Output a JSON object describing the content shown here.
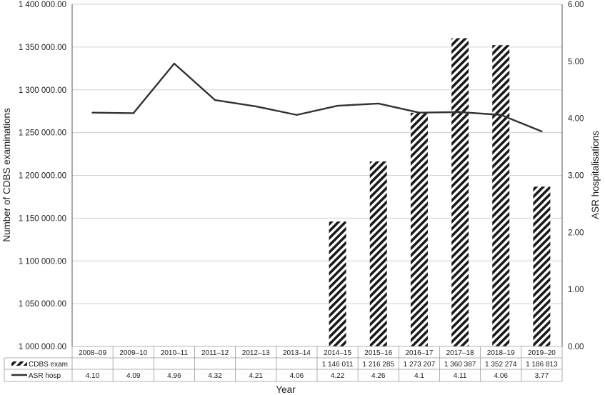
{
  "chart_data": {
    "type": "bar",
    "categories": [
      "2008–09",
      "2009–10",
      "2010–11",
      "2011–12",
      "2012–13",
      "2013–14",
      "2014–15",
      "2015–16",
      "2016–17",
      "2017–18",
      "2018–19",
      "2019–20"
    ],
    "series": [
      {
        "name": "CDBS exam",
        "type": "bar",
        "axis": "left",
        "values": [
          null,
          null,
          null,
          null,
          null,
          null,
          1146011,
          1216285,
          1273207,
          1360387,
          1352274,
          1186813
        ],
        "labels": [
          "",
          "",
          "",
          "",
          "",
          "",
          "1 146 011",
          "1 216 285",
          "1 273 207",
          "1 360 387",
          "1 352 274",
          "1 186 813"
        ]
      },
      {
        "name": "ASR hosp",
        "type": "line",
        "axis": "right",
        "values": [
          4.1,
          4.09,
          4.96,
          4.32,
          4.21,
          4.06,
          4.22,
          4.26,
          4.1,
          4.11,
          4.06,
          3.77
        ],
        "labels": [
          "4.10",
          "4.09",
          "4.96",
          "4.32",
          "4.21",
          "4.06",
          "4.22",
          "4.26",
          "4.1",
          "4.11",
          "4.06",
          "3.77"
        ]
      }
    ],
    "xlabel": "Year",
    "ylabel": "Number of CDBS examinations",
    "y2label": "ASR hospitalisations",
    "ylim": [
      1000000,
      1400000
    ],
    "y2lim": [
      0,
      6
    ],
    "y_ticks": [
      "1 000 000.00",
      "1 050 000.00",
      "1 100 000.00",
      "1 150 000.00",
      "1 200 000.00",
      "1 250 000.00",
      "1 300 000.00",
      "1 350 000.00",
      "1 400 000.00"
    ],
    "y2_ticks": [
      "0.00",
      "1.00",
      "2.00",
      "3.00",
      "4.00",
      "5.00",
      "6.00"
    ],
    "grid": "horizontal",
    "legend": "data-table-below"
  }
}
